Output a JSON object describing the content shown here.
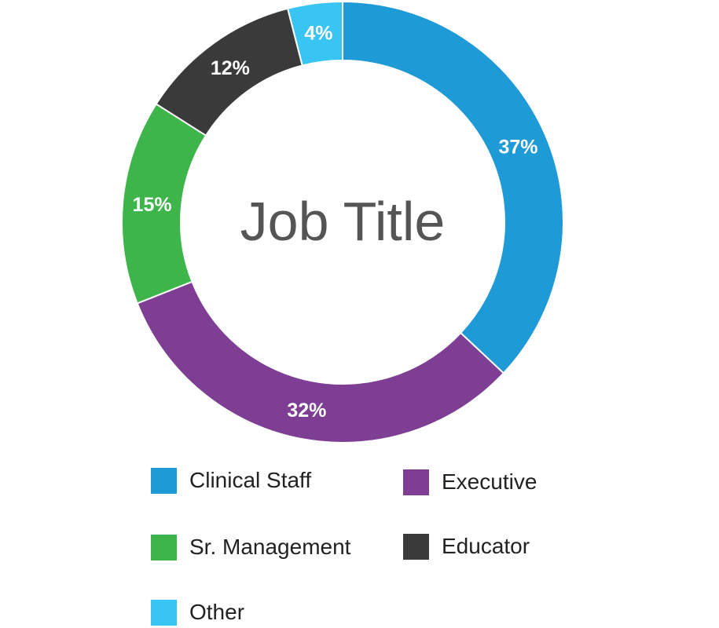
{
  "chart_data": {
    "type": "pie",
    "title": "Job Title",
    "legend_placement": "bottom",
    "slices": [
      {
        "label": "Clinical Staff",
        "value": 37,
        "value_label": "37%",
        "color": "#1e9ad6"
      },
      {
        "label": "Executive",
        "value": 32,
        "value_label": "32%",
        "color": "#7e3e93"
      },
      {
        "label": "Sr. Management",
        "value": 15,
        "value_label": "15%",
        "color": "#3db54a"
      },
      {
        "label": "Educator",
        "value": 12,
        "value_label": "12%",
        "color": "#3a3a3a"
      },
      {
        "label": "Other",
        "value": 4,
        "value_label": "4%",
        "color": "#38c5f3"
      }
    ]
  }
}
